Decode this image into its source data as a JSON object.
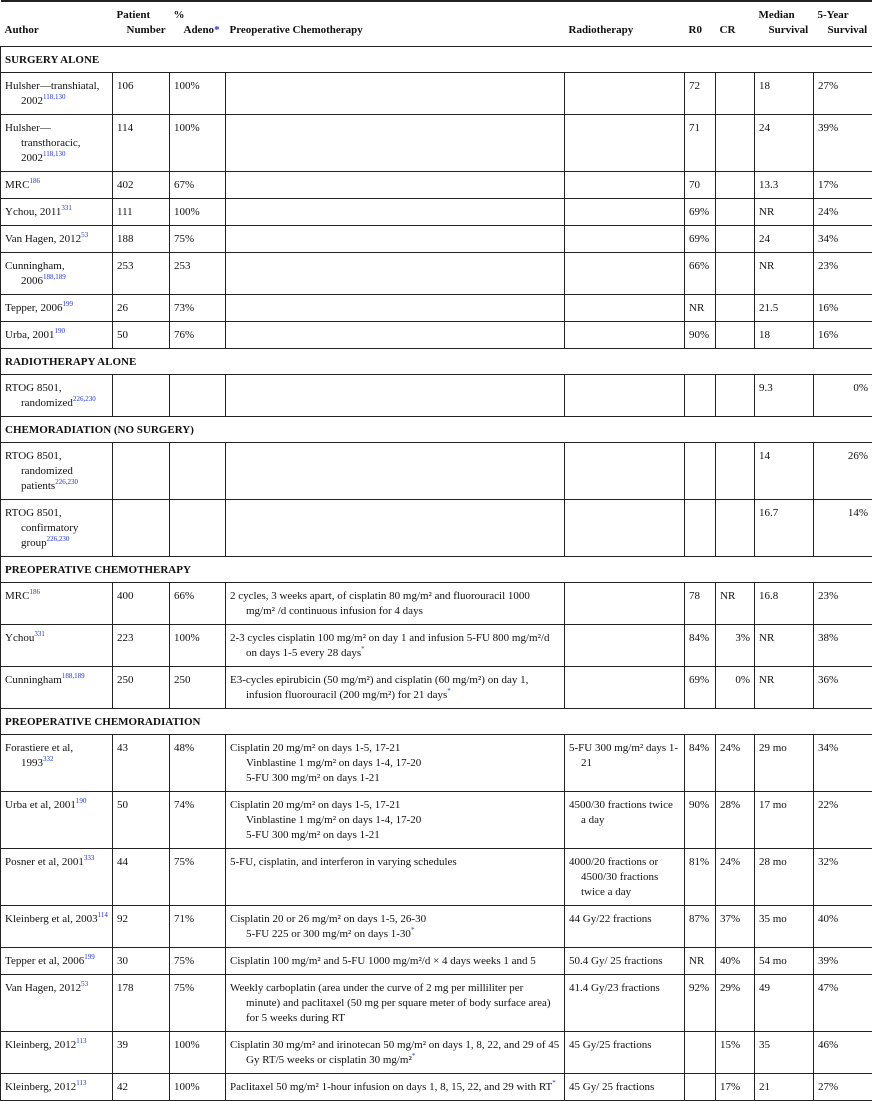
{
  "headers": {
    "author": "Author",
    "patient_1": "Patient",
    "patient_2": "Number",
    "adeno_1": "%",
    "adeno_2": "Adeno",
    "adeno_mark": "*",
    "chemo": "Preoperative Chemotherapy",
    "radio": "Radiotherapy",
    "r0": "R0",
    "cr": "CR",
    "median_1": "Median",
    "median_2": "Survival",
    "five_1": "5-Year",
    "five_2": "Survival"
  },
  "sections": [
    {
      "title": "SURGERY ALONE",
      "rows": [
        {
          "author": "Hulsher—transhiatal, 2002",
          "ref": "118,130",
          "n": "106",
          "adeno": "100%",
          "chemo": [],
          "chemo_mark": "",
          "radio": "",
          "r0": "72",
          "cr": "",
          "median": "18",
          "five": "27%"
        },
        {
          "author": "Hulsher—transthoracic, 2002",
          "ref": "118,130",
          "n": "114",
          "adeno": "100%",
          "chemo": [],
          "chemo_mark": "",
          "radio": "",
          "r0": "71",
          "cr": "",
          "median": "24",
          "five": "39%"
        },
        {
          "author": "MRC",
          "ref": "186",
          "n": "402",
          "adeno": "67%",
          "chemo": [],
          "chemo_mark": "",
          "radio": "",
          "r0": "70",
          "cr": "",
          "median": "13.3",
          "five": "17%"
        },
        {
          "author": "Ychou, 2011",
          "ref": "331",
          "n": "111",
          "adeno": "100%",
          "chemo": [],
          "chemo_mark": "",
          "radio": "",
          "r0": "69%",
          "cr": "",
          "median": "NR",
          "five": "24%"
        },
        {
          "author": "Van Hagen, 2012",
          "ref": "53",
          "n": "188",
          "adeno": "75%",
          "chemo": [],
          "chemo_mark": "",
          "radio": "",
          "r0": "69%",
          "cr": "",
          "median": "24",
          "five": "34%"
        },
        {
          "author": "Cunningham, 2006",
          "ref": "188,189",
          "n": "253",
          "adeno": "253",
          "chemo": [],
          "chemo_mark": "",
          "radio": "",
          "r0": "66%",
          "cr": "",
          "median": "NR",
          "five": "23%"
        },
        {
          "author": "Tepper, 2006",
          "ref": "199",
          "n": "26",
          "adeno": "73%",
          "chemo": [],
          "chemo_mark": "",
          "radio": "",
          "r0": "NR",
          "cr": "",
          "median": "21.5",
          "five": "16%"
        },
        {
          "author": "Urba, 2001",
          "ref": "190",
          "n": "50",
          "adeno": "76%",
          "chemo": [],
          "chemo_mark": "",
          "radio": "",
          "r0": "90%",
          "cr": "",
          "median": "18",
          "five": "16%"
        }
      ]
    },
    {
      "title": "RADIOTHERAPY ALONE",
      "rows": [
        {
          "author": "RTOG 8501, randomized",
          "ref": "226,230",
          "n": "",
          "adeno": "",
          "chemo": [],
          "chemo_mark": "",
          "radio": "",
          "r0": "",
          "cr": "",
          "median": "9.3",
          "five": "0%",
          "five_right": true
        }
      ]
    },
    {
      "title": "CHEMORADIATION (NO SURGERY)",
      "rows": [
        {
          "author": "RTOG 8501, randomized patients",
          "ref": "226,230",
          "n": "",
          "adeno": "",
          "chemo": [],
          "chemo_mark": "",
          "radio": "",
          "r0": "",
          "cr": "",
          "median": "14",
          "five": "26%",
          "five_right": true
        },
        {
          "author": "RTOG 8501, confirmatory group",
          "ref": "226,230",
          "n": "",
          "adeno": "",
          "chemo": [],
          "chemo_mark": "",
          "radio": "",
          "r0": "",
          "cr": "",
          "median": "16.7",
          "five": "14%",
          "five_right": true
        }
      ]
    },
    {
      "title": "PREOPERATIVE CHEMOTHERAPY",
      "rows": [
        {
          "author": "MRC",
          "ref": "186",
          "n": "400",
          "adeno": "66%",
          "chemo": [
            "2 cycles, 3 weeks apart, of cisplatin 80 mg/m² and fluorouracil 1000 mg/m² /d continuous infusion for 4 days"
          ],
          "chemo_mark": "",
          "radio": "",
          "r0": "78",
          "cr": "NR",
          "median": "16.8",
          "five": "23%"
        },
        {
          "author": "Ychou",
          "ref": "331",
          "n": "223",
          "adeno": "100%",
          "chemo": [
            "2-3 cycles cisplatin 100 mg/m² on day 1 and infusion 5-FU 800 mg/m²/d on days 1-5 every 28 days"
          ],
          "chemo_mark": "*",
          "radio": "",
          "r0": "84%",
          "cr": "3%",
          "cr_right": true,
          "median": "NR",
          "five": "38%"
        },
        {
          "author": "Cunningham",
          "ref": "188,189",
          "n": "250",
          "adeno": "250",
          "chemo": [
            "E3-cycles epirubicin (50 mg/m²) and cisplatin (60 mg/m²) on day 1, infusion fluorouracil (200 mg/m²) for 21 days"
          ],
          "chemo_mark": "*",
          "radio": "",
          "r0": "69%",
          "cr": "0%",
          "cr_right": true,
          "median": "NR",
          "five": "36%"
        }
      ]
    },
    {
      "title": "PREOPERATIVE CHEMORADIATION",
      "rows": [
        {
          "author": "Forastiere et al, 1993",
          "ref": "332",
          "n": "43",
          "adeno": "48%",
          "chemo": [
            "Cisplatin 20 mg/m² on days 1-5, 17-21",
            "Vinblastine 1 mg/m² on days 1-4, 17-20",
            "5-FU 300 mg/m² on days 1-21"
          ],
          "chemo_mark": "",
          "radio": "5-FU 300 mg/m² days 1-21",
          "r0": "84%",
          "cr": "24%",
          "median": "29 mo",
          "five": "34%"
        },
        {
          "author": "Urba et al, 2001",
          "ref": "190",
          "n": "50",
          "adeno": "74%",
          "chemo": [
            "Cisplatin 20 mg/m² on days 1-5, 17-21",
            "Vinblastine 1 mg/m² on days 1-4, 17-20",
            "5-FU 300 mg/m² on days 1-21"
          ],
          "chemo_mark": "",
          "radio": "4500/30 fractions twice a day",
          "r0": "90%",
          "cr": "28%",
          "median": "17 mo",
          "five": "22%"
        },
        {
          "author": "Posner et al, 2001",
          "ref": "333",
          "n": "44",
          "adeno": "75%",
          "chemo": [
            "5-FU, cisplatin, and interferon in varying schedules"
          ],
          "chemo_mark": "",
          "radio": "4000/20 fractions or 4500/30 fractions twice a day",
          "r0": "81%",
          "cr": "24%",
          "median": "28 mo",
          "five": "32%"
        },
        {
          "author": "Kleinberg et al, 2003",
          "ref": "114",
          "n": "92",
          "adeno": "71%",
          "chemo": [
            "Cisplatin 20 or 26 mg/m² on days 1-5, 26-30",
            "5-FU 225 or 300 mg/m² on days 1-30"
          ],
          "chemo_mark": "*",
          "radio": "44 Gy/22 fractions",
          "r0": "87%",
          "cr": "37%",
          "median": "35 mo",
          "five": "40%"
        },
        {
          "author": "Tepper et al, 2006",
          "ref": "199",
          "n": "30",
          "adeno": "75%",
          "chemo": [
            "Cisplatin 100 mg/m² and 5-FU 1000 mg/m²/d × 4 days weeks 1 and 5"
          ],
          "chemo_mark": "",
          "radio": "50.4 Gy/ 25 fractions",
          "r0": "NR",
          "cr": "40%",
          "median": "54 mo",
          "five": "39%"
        },
        {
          "author": "Van Hagen, 2012",
          "ref": "53",
          "n": "178",
          "adeno": "75%",
          "chemo": [
            "Weekly carboplatin (area under the curve of 2 mg per milliliter per minute) and paclitaxel (50 mg per square meter of body surface area) for 5 weeks during RT"
          ],
          "chemo_mark": "",
          "radio": "41.4 Gy/23 fractions",
          "r0": "92%",
          "cr": "29%",
          "median": "49",
          "five": "47%"
        },
        {
          "author": "Kleinberg, 2012",
          "ref": "113",
          "n": "39",
          "adeno": "100%",
          "chemo": [
            "Cisplatin 30 mg/m² and irinotecan 50 mg/m² on days 1, 8, 22, and 29 of 45 Gy RT/5 weeks or cisplatin 30 mg/m²"
          ],
          "chemo_mark": "*",
          "radio": "45 Gy/25 fractions",
          "r0": "",
          "cr": "15%",
          "median": "35",
          "five": "46%"
        },
        {
          "author": "Kleinberg, 2012",
          "ref": "113",
          "n": "42",
          "adeno": "100%",
          "chemo": [
            "Paclitaxel 50 mg/m² 1-hour infusion on days 1, 8, 15, 22, and 29 with RT"
          ],
          "chemo_mark": "*",
          "radio": "45 Gy/ 25 fractions",
          "r0": "",
          "cr": "17%",
          "median": "21",
          "five": "27%"
        }
      ]
    }
  ]
}
